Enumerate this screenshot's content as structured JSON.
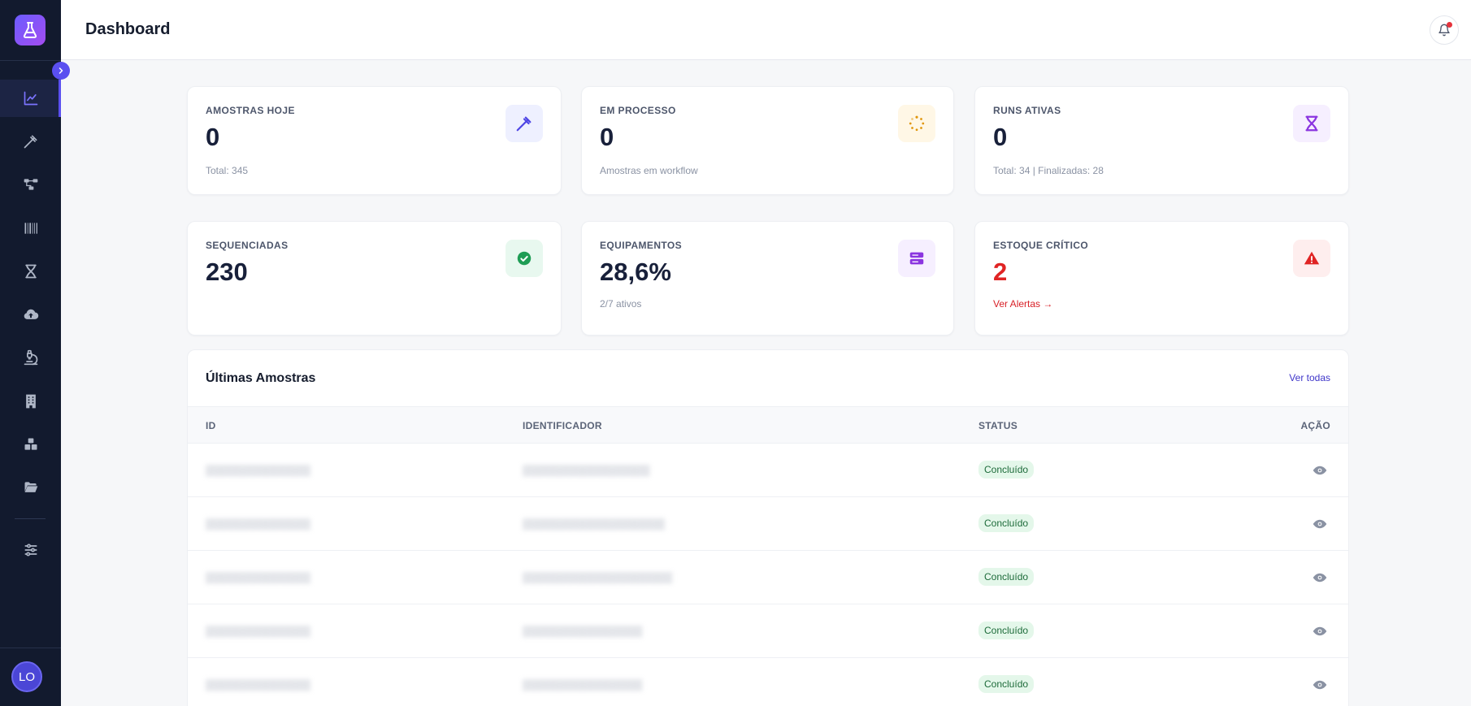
{
  "header": {
    "title": "Dashboard"
  },
  "sidebar": {
    "items": [
      {
        "icon": "chart-line-icon",
        "active": true
      },
      {
        "icon": "pipette-icon"
      },
      {
        "icon": "workflow-icon"
      },
      {
        "icon": "barcode-icon"
      },
      {
        "icon": "dna-icon"
      },
      {
        "icon": "cloud-upload-icon"
      },
      {
        "icon": "microscope-icon"
      },
      {
        "icon": "building-icon"
      },
      {
        "icon": "boxes-icon"
      },
      {
        "icon": "folder-open-icon"
      }
    ],
    "settings_icon": "sliders-icon",
    "avatar_initials": "LO"
  },
  "cards": [
    {
      "label": "AMOSTRAS HOJE",
      "value": "0",
      "sub": "Total: 345",
      "icon": "pipette-icon",
      "icon_bg": "#eef0ff",
      "icon_color": "#4f46e5"
    },
    {
      "label": "EM PROCESSO",
      "value": "0",
      "sub": "Amostras em workflow",
      "icon": "spinner-icon",
      "icon_bg": "#fff7e6",
      "icon_color": "#e0950a"
    },
    {
      "label": "RUNS ATIVAS",
      "value": "0",
      "sub": "Total: 34 | Finalizadas: 28",
      "icon": "dna-icon",
      "icon_bg": "#f6efff",
      "icon_color": "#8b35e0"
    },
    {
      "label": "SEQUENCIADAS",
      "value": "230",
      "sub": "",
      "icon": "check-circle-icon",
      "icon_bg": "#e8f8ef",
      "icon_color": "#1f9d55"
    },
    {
      "label": "EQUIPAMENTOS",
      "value": "28,6%",
      "sub": "2/7 ativos",
      "icon": "server-icon",
      "icon_bg": "#f6efff",
      "icon_color": "#8b35e0"
    },
    {
      "label": "ESTOQUE CRÍTICO",
      "value": "2",
      "link": "Ver Alertas →",
      "icon": "alert-triangle-icon",
      "icon_bg": "#feeeee",
      "icon_color": "#e02424"
    }
  ],
  "table": {
    "title": "Últimas Amostras",
    "see_all": "Ver todas",
    "columns": [
      "ID",
      "IDENTIFICADOR",
      "STATUS",
      "AÇÃO"
    ],
    "rows": [
      {
        "status": "Concluído"
      },
      {
        "status": "Concluído"
      },
      {
        "status": "Concluído"
      },
      {
        "status": "Concluído"
      },
      {
        "status": "Concluído"
      }
    ]
  },
  "colors": {
    "accent": "#5a4ff0",
    "sidebar_bg": "#121a2e",
    "danger": "#e02424",
    "success_bg": "#e4f7ea",
    "success_text": "#1d6b3a"
  }
}
